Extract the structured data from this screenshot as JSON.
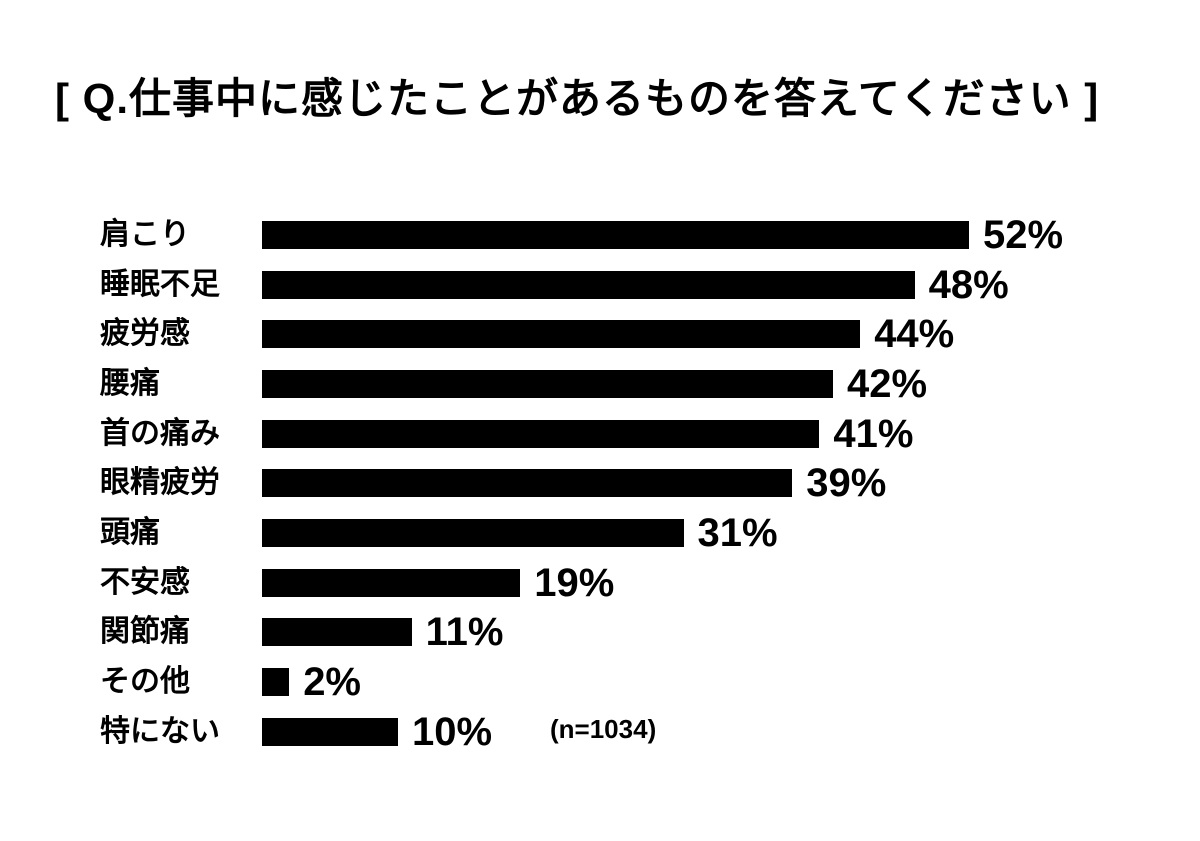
{
  "title": "[ Q.仕事中に感じたことがあるものを答えてください ]",
  "chart_data": {
    "type": "bar",
    "orientation": "horizontal",
    "title": "Q.仕事中に感じたことがあるものを答えてください",
    "categories": [
      "肩こり",
      "睡眠不足",
      "疲労感",
      "腰痛",
      "首の痛み",
      "眼精疲労",
      "頭痛",
      "不安感",
      "関節痛",
      "その他",
      "特にない"
    ],
    "values": [
      52,
      48,
      44,
      42,
      41,
      39,
      31,
      19,
      11,
      2,
      10
    ],
    "value_suffix": "%",
    "xlim": [
      0,
      52
    ],
    "bar_color": "#000000",
    "background_color": "#ffffff",
    "grid": false,
    "legend": false,
    "sample_note": "(n=1034)"
  }
}
